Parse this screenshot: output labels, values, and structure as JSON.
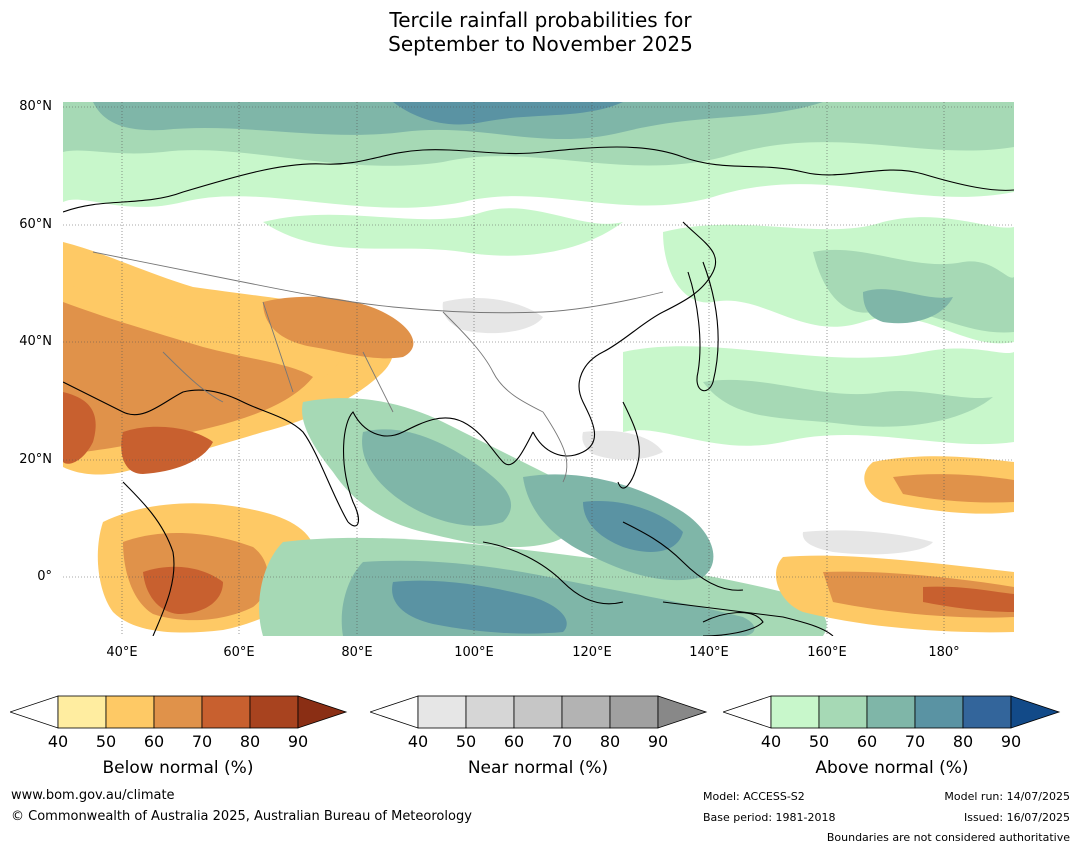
{
  "title": {
    "line1": "Tercile rainfall probabilities for",
    "line2": "September to November 2025"
  },
  "map": {
    "lat_labels": [
      "80°N",
      "60°N",
      "40°N",
      "20°N",
      "0°"
    ],
    "lon_labels": [
      "40°E",
      "60°E",
      "80°E",
      "100°E",
      "120°E",
      "140°E",
      "160°E",
      "180°"
    ]
  },
  "colorbars": [
    {
      "label": "Below normal (%)",
      "ticks": [
        "40",
        "50",
        "60",
        "70",
        "80",
        "90"
      ],
      "colors": [
        "#ffffff",
        "#ffeda0",
        "#fec965",
        "#e0924a",
        "#c8602f",
        "#a8431f",
        "#8a2e14"
      ]
    },
    {
      "label": "Near normal (%)",
      "ticks": [
        "40",
        "50",
        "60",
        "70",
        "80",
        "90"
      ],
      "colors": [
        "#ffffff",
        "#e6e6e6",
        "#d6d6d6",
        "#c6c6c6",
        "#b3b3b3",
        "#a0a0a0",
        "#888888"
      ]
    },
    {
      "label": "Above normal (%)",
      "ticks": [
        "40",
        "50",
        "60",
        "70",
        "80",
        "90"
      ],
      "colors": [
        "#ffffff",
        "#c8f7cb",
        "#a6d9b5",
        "#7fb6a8",
        "#5a93a3",
        "#33659b",
        "#124a88"
      ]
    }
  ],
  "footer": {
    "url": "www.bom.gov.au/climate",
    "copyright": "© Commonwealth of Australia 2025, Australian Bureau of Meteorology",
    "model": "Model: ACCESS-S2",
    "base_period": "Base period: 1981-2018",
    "model_run": "Model run: 14/07/2025",
    "issued": "Issued: 16/07/2025",
    "disclaimer": "Boundaries are not considered authoritative"
  }
}
